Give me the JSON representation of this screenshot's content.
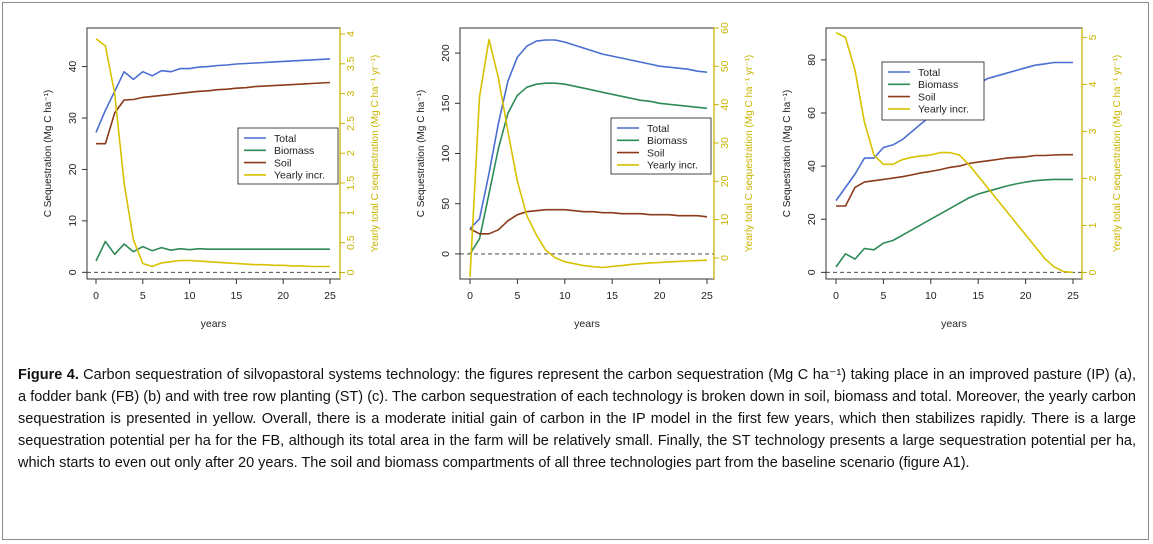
{
  "chart_data": [
    {
      "type": "line",
      "xlabel": "years",
      "ylabel": "C Sequestration (Mg C ha⁻¹)",
      "y2label": "Yearly total C sequestration (Mg C ha⁻¹ yr⁻¹)",
      "x_ticks": [
        0,
        5,
        10,
        15,
        20,
        25
      ],
      "y_ticks": [
        0,
        10,
        20,
        30,
        40
      ],
      "y2_ticks": [
        "0",
        "0.5",
        "1",
        "1.5",
        "2",
        "2.5",
        "3",
        "3.5",
        "4"
      ],
      "xlim": [
        0,
        25
      ],
      "ylim": [
        -1.3,
        47.5
      ],
      "y2lim": [
        -0.11,
        4.1
      ],
      "legend_position": "center-right",
      "x": [
        0,
        1,
        2,
        3,
        4,
        5,
        6,
        7,
        8,
        9,
        10,
        11,
        12,
        13,
        14,
        15,
        16,
        17,
        18,
        19,
        20,
        21,
        22,
        23,
        24,
        25
      ],
      "series": [
        {
          "name": "Total",
          "color": "#4a6fd0",
          "axis": "left",
          "values": [
            27.2,
            31.5,
            35.2,
            39.0,
            37.5,
            39.0,
            38.2,
            39.2,
            39.0,
            39.6,
            39.6,
            39.9,
            40.0,
            40.2,
            40.3,
            40.5,
            40.6,
            40.7,
            40.8,
            40.9,
            41.0,
            41.1,
            41.2,
            41.3,
            41.4,
            41.5
          ]
        },
        {
          "name": "Biomass",
          "color": "#2e8b57",
          "axis": "left",
          "values": [
            2.2,
            6.0,
            3.5,
            5.5,
            4.0,
            5.0,
            4.2,
            4.8,
            4.3,
            4.6,
            4.4,
            4.6,
            4.5,
            4.5,
            4.5,
            4.5,
            4.5,
            4.5,
            4.5,
            4.5,
            4.5,
            4.5,
            4.5,
            4.5,
            4.5,
            4.5
          ]
        },
        {
          "name": "Soil",
          "color": "#8b3a1a",
          "axis": "left",
          "values": [
            25.0,
            25.0,
            31.0,
            33.5,
            33.6,
            34.0,
            34.2,
            34.4,
            34.6,
            34.8,
            35.0,
            35.2,
            35.3,
            35.5,
            35.6,
            35.8,
            35.9,
            36.1,
            36.2,
            36.3,
            36.4,
            36.5,
            36.6,
            36.7,
            36.8,
            36.9
          ]
        },
        {
          "name": "Yearly incr.",
          "color": "#d8c200",
          "axis": "right",
          "values": [
            3.92,
            3.8,
            3.0,
            1.5,
            0.55,
            0.15,
            0.1,
            0.16,
            0.18,
            0.2,
            0.2,
            0.19,
            0.18,
            0.17,
            0.16,
            0.15,
            0.14,
            0.13,
            0.13,
            0.12,
            0.12,
            0.11,
            0.11,
            0.1,
            0.1,
            0.1
          ]
        }
      ]
    },
    {
      "type": "line",
      "xlabel": "years",
      "ylabel": "C Sequestration (Mg C ha⁻¹)",
      "y2label": "Yearly total C sequestration (Mg C ha⁻¹ yr⁻¹)",
      "x_ticks": [
        0,
        5,
        10,
        15,
        20,
        25
      ],
      "y_ticks": [
        0,
        50,
        100,
        150,
        200
      ],
      "y2_ticks": [
        "0",
        "10",
        "20",
        "30",
        "40",
        "50",
        "60"
      ],
      "xlim": [
        0,
        25
      ],
      "ylim": [
        -25,
        225
      ],
      "y2lim": [
        -5.5,
        60
      ],
      "legend_position": "center-right",
      "x": [
        0,
        1,
        2,
        3,
        4,
        5,
        6,
        7,
        8,
        9,
        10,
        11,
        12,
        13,
        14,
        15,
        16,
        17,
        18,
        19,
        20,
        21,
        22,
        23,
        24,
        25
      ],
      "series": [
        {
          "name": "Total",
          "color": "#4a6fd0",
          "axis": "left",
          "values": [
            25,
            35,
            80,
            130,
            172,
            196,
            207,
            212,
            213,
            213,
            211,
            208,
            205,
            202,
            199,
            197,
            195,
            193,
            191,
            189,
            187,
            186,
            185,
            184,
            182,
            181
          ]
        },
        {
          "name": "Biomass",
          "color": "#2e8b57",
          "axis": "left",
          "values": [
            0,
            15,
            60,
            105,
            140,
            158,
            166,
            169,
            170,
            170,
            169,
            167,
            165,
            163,
            161,
            159,
            157,
            155,
            153,
            152,
            150,
            149,
            148,
            147,
            146,
            145
          ]
        },
        {
          "name": "Soil",
          "color": "#8b3a1a",
          "axis": "left",
          "values": [
            25,
            20,
            20,
            24,
            33,
            39,
            42,
            43,
            44,
            44,
            44,
            43,
            42,
            42,
            41,
            41,
            40,
            40,
            40,
            39,
            39,
            39,
            38,
            38,
            38,
            37
          ]
        },
        {
          "name": "Yearly incr.",
          "color": "#d8c200",
          "axis": "right",
          "values": [
            -5,
            42,
            57,
            47,
            33,
            20,
            11,
            6,
            2,
            0,
            -1,
            -1.5,
            -2,
            -2.3,
            -2.5,
            -2.2,
            -2,
            -1.7,
            -1.5,
            -1.3,
            -1.2,
            -1,
            -0.9,
            -0.8,
            -0.7,
            -0.6
          ]
        }
      ]
    },
    {
      "type": "line",
      "xlabel": "years",
      "ylabel": "C Sequestration (Mg C ha⁻¹)",
      "y2label": "Yearly total C sequestration (Mg C ha⁻¹ yr⁻¹)",
      "x_ticks": [
        0,
        5,
        10,
        15,
        20,
        25
      ],
      "y_ticks": [
        0,
        20,
        40,
        60,
        80
      ],
      "y2_ticks": [
        "0",
        "1",
        "2",
        "3",
        "4",
        "5"
      ],
      "xlim": [
        0,
        25
      ],
      "ylim": [
        -2.5,
        92
      ],
      "y2lim": [
        -0.14,
        5.2
      ],
      "legend_position": "top-center",
      "x": [
        0,
        1,
        2,
        3,
        4,
        5,
        6,
        7,
        8,
        9,
        10,
        11,
        12,
        13,
        14,
        15,
        16,
        17,
        18,
        19,
        20,
        21,
        22,
        23,
        24,
        25
      ],
      "series": [
        {
          "name": "Total",
          "color": "#4a6fd0",
          "axis": "left",
          "values": [
            27,
            32,
            37,
            43,
            43,
            47,
            48,
            50,
            53,
            56,
            59,
            61,
            64,
            67,
            69,
            71,
            73,
            74,
            75,
            76,
            77,
            78,
            78.5,
            79,
            79,
            79
          ]
        },
        {
          "name": "Biomass",
          "color": "#2e8b57",
          "axis": "left",
          "values": [
            2,
            7,
            5,
            9,
            8.5,
            11,
            12,
            14,
            16,
            18,
            20,
            22,
            24,
            26,
            28,
            29.5,
            30.5,
            31.5,
            32.5,
            33.3,
            34,
            34.5,
            34.8,
            35,
            35,
            35
          ]
        },
        {
          "name": "Soil",
          "color": "#8b3a1a",
          "axis": "left",
          "values": [
            25,
            25,
            32,
            34,
            34.5,
            35,
            35.5,
            36,
            36.7,
            37.5,
            38,
            38.7,
            39.5,
            40,
            41,
            41.5,
            42,
            42.5,
            43,
            43.3,
            43.5,
            44,
            44,
            44.2,
            44.3,
            44.3
          ]
        },
        {
          "name": "Yearly incr.",
          "color": "#d8c200",
          "axis": "right",
          "values": [
            5.1,
            5.0,
            4.3,
            3.2,
            2.5,
            2.3,
            2.3,
            2.4,
            2.45,
            2.48,
            2.5,
            2.55,
            2.55,
            2.5,
            2.3,
            2.05,
            1.8,
            1.55,
            1.3,
            1.05,
            0.8,
            0.55,
            0.3,
            0.12,
            0.02,
            0.0
          ]
        }
      ]
    }
  ],
  "caption": {
    "label": "Figure 4.",
    "text": "Carbon sequestration of silvopastoral systems technology: the figures represent the carbon sequestration (Mg C ha⁻¹) taking place in an improved pasture (IP) (a), a fodder bank (FB) (b) and with tree row planting (ST) (c). The carbon sequestration of each technology is broken down in soil, biomass and total. Moreover, the yearly carbon sequestration is presented in yellow. Overall, there is a moderate initial gain of carbon in the IP model in the first few years, which then stabilizes rapidly. There is a large sequestration potential per ha for the FB, although its total area in the farm will be relatively small. Finally, the ST technology presents a large sequestration potential per ha, which starts to even out only after 20 years. The soil and biomass compartments of all three technologies part from the baseline scenario (figure A1)."
  }
}
